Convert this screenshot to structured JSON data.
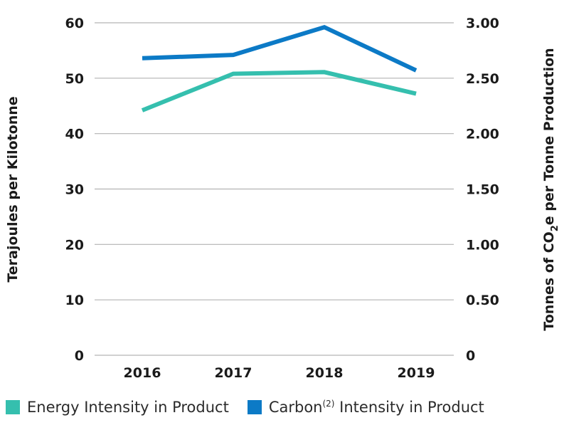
{
  "chart_data": {
    "type": "line",
    "categories": [
      "2016",
      "2017",
      "2018",
      "2019"
    ],
    "y_left": {
      "label": "Terajoules per Kilotonne",
      "range": [
        0,
        60
      ],
      "ticks": [
        "0",
        "10",
        "20",
        "30",
        "40",
        "50",
        "60"
      ]
    },
    "y_right": {
      "label_prefix": "Tonnes of CO",
      "label_sub": "2",
      "label_suffix": "e per Tonne Production",
      "range": [
        0,
        3.0
      ],
      "ticks": [
        "0",
        "0.50",
        "1.00",
        "1.50",
        "2.00",
        "2.50",
        "3.00"
      ]
    },
    "grid": true,
    "legend_position": "bottom",
    "series": [
      {
        "name": "Energy Intensity in Product",
        "axis": "left",
        "color": "#35bfae",
        "values": [
          44.2,
          50.8,
          51.1,
          47.2
        ]
      },
      {
        "name_prefix": "Carbon",
        "name_sup": "(2)",
        "name_suffix": " Intensity in Product",
        "axis": "right",
        "color": "#0c7ac6",
        "values": [
          2.68,
          2.71,
          2.96,
          2.57
        ]
      }
    ]
  }
}
